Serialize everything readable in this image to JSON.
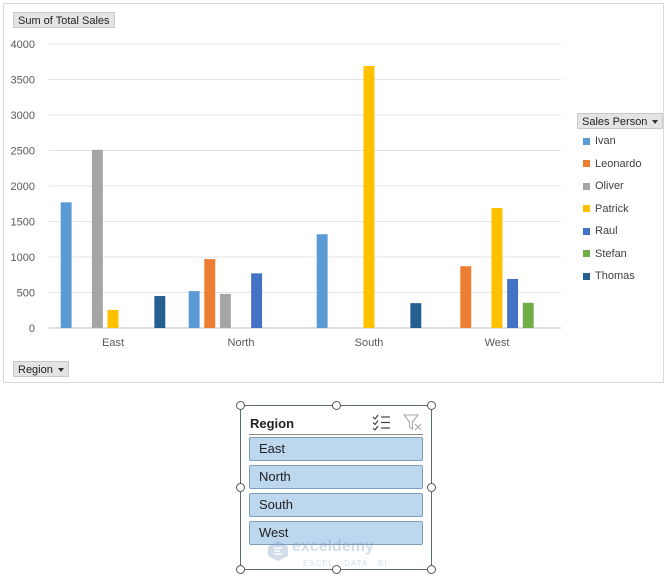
{
  "chart": {
    "value_field_label": "Sum of Total Sales",
    "region_field_label": "Region",
    "legend_title": "Sales Person"
  },
  "chart_data": {
    "type": "bar",
    "title": "",
    "xlabel": "",
    "ylabel": "",
    "categories": [
      "East",
      "North",
      "South",
      "West"
    ],
    "ylim": [
      0,
      4000
    ],
    "yticks": [
      0,
      500,
      1000,
      1500,
      2000,
      2500,
      3000,
      3500,
      4000
    ],
    "grid": true,
    "legend_position": "right",
    "series": [
      {
        "name": "Ivan",
        "color": "#5b9bd5",
        "values": [
          1770,
          520,
          1320,
          null
        ]
      },
      {
        "name": "Leonardo",
        "color": "#ed7d31",
        "values": [
          null,
          970,
          null,
          870
        ]
      },
      {
        "name": "Oliver",
        "color": "#a5a5a5",
        "values": [
          2510,
          480,
          null,
          null
        ]
      },
      {
        "name": "Patrick",
        "color": "#ffc000",
        "values": [
          255,
          null,
          3690,
          1690
        ]
      },
      {
        "name": "Raul",
        "color": "#4472c4",
        "values": [
          null,
          770,
          null,
          690
        ]
      },
      {
        "name": "Stefan",
        "color": "#70ad47",
        "values": [
          null,
          null,
          null,
          355
        ]
      },
      {
        "name": "Thomas",
        "color": "#255e91",
        "values": [
          450,
          null,
          350,
          null
        ]
      }
    ]
  },
  "slicer": {
    "title": "Region",
    "items": [
      "East",
      "North",
      "South",
      "West"
    ],
    "multi_select_icon": "multi-select-icon",
    "clear_filter_icon": "clear-filter-icon"
  },
  "watermark": {
    "name": "exceldemy",
    "tagline": "EXCEL · DATA · BI"
  }
}
